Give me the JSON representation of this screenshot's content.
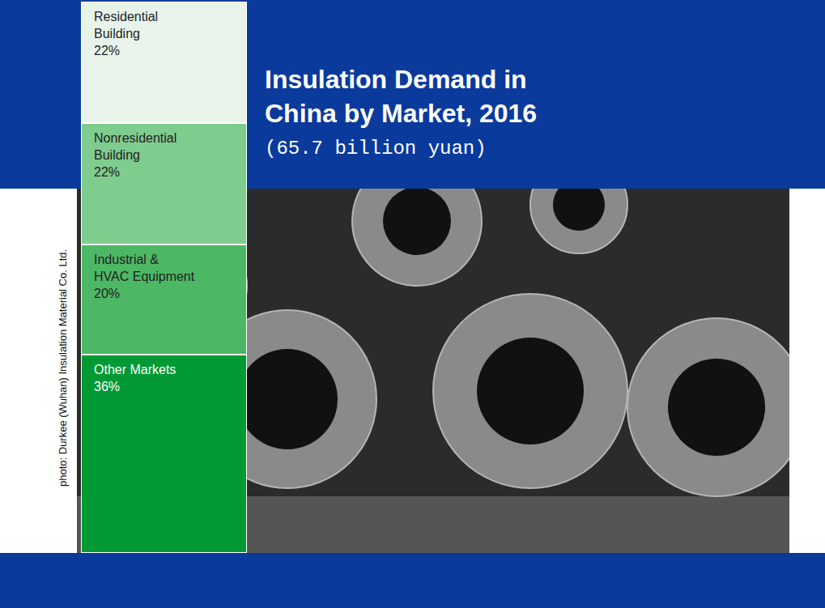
{
  "chart_data": {
    "type": "bar",
    "stacked": true,
    "title": "Insulation Demand in China by Market, 2016",
    "subtitle": "(65.7 billion yuan)",
    "annotations": [
      "photo: Durkee (Wuhan) Insulation Material Co. Ltd."
    ],
    "series": [
      {
        "name": "Other Markets",
        "color": "#009933",
        "values": [
          36
        ],
        "value_labels": [
          "36%"
        ]
      },
      {
        "name": "Industrial & HVAC Equipment",
        "color": "#4cb865",
        "values": [
          20
        ],
        "value_labels": [
          "20%"
        ]
      },
      {
        "name": "Nonresidential Building",
        "color": "#7fcc8f",
        "values": [
          22
        ],
        "value_labels": [
          "22%"
        ]
      },
      {
        "name": "Residential Building",
        "color": "#e8f4ea",
        "values": [
          22
        ],
        "value_labels": [
          "22%"
        ]
      }
    ],
    "ylim": [
      0,
      100
    ],
    "data_labels": true,
    "tick_labels": false,
    "grid": false
  }
}
